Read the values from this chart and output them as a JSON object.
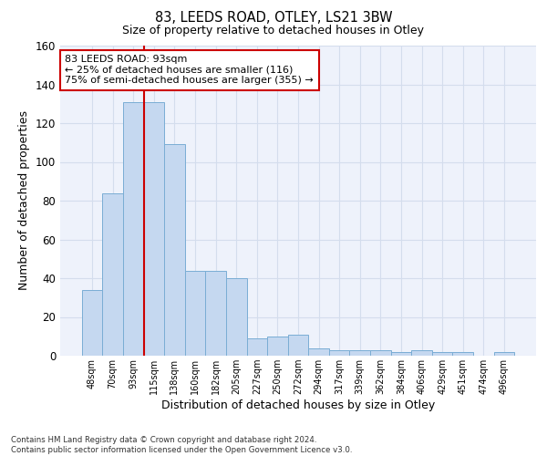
{
  "title_line1": "83, LEEDS ROAD, OTLEY, LS21 3BW",
  "title_line2": "Size of property relative to detached houses in Otley",
  "xlabel": "Distribution of detached houses by size in Otley",
  "ylabel": "Number of detached properties",
  "categories": [
    "48sqm",
    "70sqm",
    "93sqm",
    "115sqm",
    "138sqm",
    "160sqm",
    "182sqm",
    "205sqm",
    "227sqm",
    "250sqm",
    "272sqm",
    "294sqm",
    "317sqm",
    "339sqm",
    "362sqm",
    "384sqm",
    "406sqm",
    "429sqm",
    "451sqm",
    "474sqm",
    "496sqm"
  ],
  "values": [
    34,
    84,
    131,
    131,
    109,
    44,
    44,
    40,
    9,
    10,
    11,
    4,
    3,
    3,
    3,
    2,
    3,
    2,
    2,
    0,
    2
  ],
  "bar_color": "#c5d8f0",
  "bar_edge_color": "#7aadd4",
  "red_line_index": 2,
  "ylim": [
    0,
    160
  ],
  "yticks": [
    0,
    20,
    40,
    60,
    80,
    100,
    120,
    140,
    160
  ],
  "annotation_text": "83 LEEDS ROAD: 93sqm\n← 25% of detached houses are smaller (116)\n75% of semi-detached houses are larger (355) →",
  "annotation_box_color": "#ffffff",
  "annotation_box_edge": "#cc0000",
  "footer": "Contains HM Land Registry data © Crown copyright and database right 2024.\nContains public sector information licensed under the Open Government Licence v3.0.",
  "grid_color": "#d4dded",
  "background_color": "#eef2fb"
}
